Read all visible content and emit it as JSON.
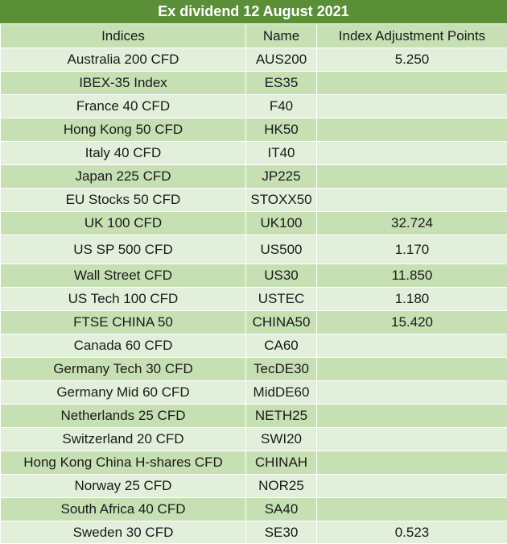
{
  "title": "Ex dividend 12 August 2021",
  "columns": [
    "Indices",
    "Name",
    "Index Adjustment Points"
  ],
  "rows": [
    {
      "index": "Australia 200 CFD",
      "name": "AUS200",
      "points": "5.250"
    },
    {
      "index": "IBEX-35 Index",
      "name": "ES35",
      "points": ""
    },
    {
      "index": "France 40 CFD",
      "name": "F40",
      "points": ""
    },
    {
      "index": "Hong Kong 50 CFD",
      "name": "HK50",
      "points": ""
    },
    {
      "index": "Italy 40 CFD",
      "name": "IT40",
      "points": ""
    },
    {
      "index": "Japan 225 CFD",
      "name": "JP225",
      "points": ""
    },
    {
      "index": "EU Stocks 50 CFD",
      "name": "STOXX50",
      "points": ""
    },
    {
      "index": "UK 100 CFD",
      "name": "UK100",
      "points": "32.724"
    },
    {
      "index": "US SP 500 CFD",
      "name": "US500",
      "points": "1.170"
    },
    {
      "index": "Wall Street CFD",
      "name": "US30",
      "points": "11.850"
    },
    {
      "index": "US Tech 100 CFD",
      "name": "USTEC",
      "points": "1.180"
    },
    {
      "index": "FTSE CHINA 50",
      "name": "CHINA50",
      "points": "15.420"
    },
    {
      "index": "Canada 60 CFD",
      "name": "CA60",
      "points": ""
    },
    {
      "index": "Germany Tech 30 CFD",
      "name": "TecDE30",
      "points": ""
    },
    {
      "index": "Germany Mid 60 CFD",
      "name": "MidDE60",
      "points": ""
    },
    {
      "index": "Netherlands 25 CFD",
      "name": "NETH25",
      "points": ""
    },
    {
      "index": "Switzerland 20 CFD",
      "name": "SWI20",
      "points": ""
    },
    {
      "index": "Hong Kong China H-shares CFD",
      "name": "CHINAH",
      "points": ""
    },
    {
      "index": "Norway 25 CFD",
      "name": "NOR25",
      "points": ""
    },
    {
      "index": "South Africa 40 CFD",
      "name": "SA40",
      "points": ""
    },
    {
      "index": "Sweden 30 CFD",
      "name": "SE30",
      "points": "0.523"
    }
  ]
}
